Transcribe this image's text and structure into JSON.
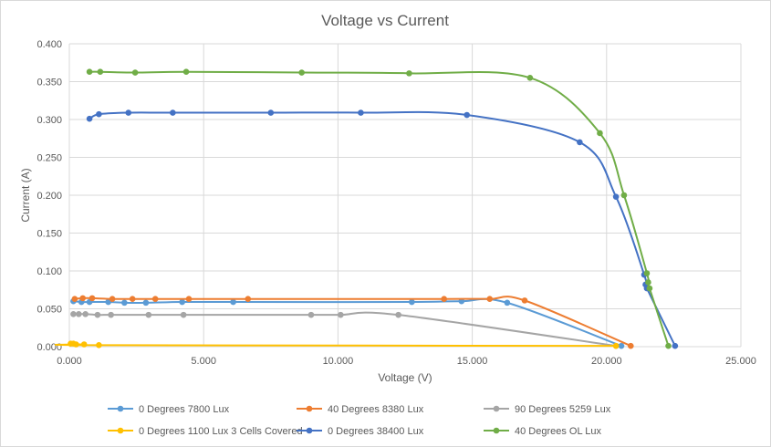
{
  "chart_data": {
    "type": "scatter",
    "title": "Voltage vs Current",
    "xlabel": "Voltage (V)",
    "ylabel": "Current (A)",
    "xlim": [
      0,
      25
    ],
    "ylim": [
      0,
      0.4
    ],
    "x_ticks": [
      "0.000",
      "5.000",
      "10.000",
      "15.000",
      "20.000",
      "25.000"
    ],
    "y_ticks": [
      "0.000",
      "0.050",
      "0.100",
      "0.150",
      "0.200",
      "0.250",
      "0.300",
      "0.350",
      "0.400"
    ],
    "grid": true,
    "legend_position": "bottom",
    "series": [
      {
        "name": "0 Degrees 7800 Lux",
        "color": "#5b9bd5",
        "points": [
          [
            0.15,
            0.06
          ],
          [
            0.45,
            0.059
          ],
          [
            0.75,
            0.059
          ],
          [
            1.45,
            0.059
          ],
          [
            2.05,
            0.058
          ],
          [
            2.85,
            0.058
          ],
          [
            4.2,
            0.059
          ],
          [
            6.1,
            0.059
          ],
          [
            12.75,
            0.059
          ],
          [
            14.6,
            0.06
          ],
          [
            16.3,
            0.058
          ],
          [
            20.55,
            0.001
          ]
        ]
      },
      {
        "name": "40 Degrees 8380 Lux",
        "color": "#ed7d31",
        "points": [
          [
            0.2,
            0.063
          ],
          [
            0.5,
            0.064
          ],
          [
            0.85,
            0.064
          ],
          [
            1.6,
            0.063
          ],
          [
            2.35,
            0.063
          ],
          [
            3.2,
            0.063
          ],
          [
            4.45,
            0.063
          ],
          [
            6.65,
            0.063
          ],
          [
            13.95,
            0.063
          ],
          [
            15.65,
            0.063
          ],
          [
            16.95,
            0.061
          ],
          [
            20.9,
            0.001
          ]
        ]
      },
      {
        "name": "90 Degrees 5259 Lux",
        "color": "#a5a5a5",
        "points": [
          [
            0.15,
            0.043
          ],
          [
            0.35,
            0.043
          ],
          [
            0.6,
            0.043
          ],
          [
            1.05,
            0.042
          ],
          [
            1.55,
            0.042
          ],
          [
            2.95,
            0.042
          ],
          [
            4.25,
            0.042
          ],
          [
            9.0,
            0.042
          ],
          [
            10.1,
            0.042
          ],
          [
            12.25,
            0.042
          ],
          [
            20.35,
            0.001
          ]
        ]
      },
      {
        "name": "0 Degrees 1100 Lux 3 Cells Covered",
        "color": "#ffc000",
        "points": [
          [
            0.05,
            0.004
          ],
          [
            0.15,
            0.004
          ],
          [
            0.25,
            0.003
          ],
          [
            0.55,
            0.003
          ],
          [
            1.1,
            0.002
          ],
          [
            20.35,
            0.001
          ]
        ]
      },
      {
        "name": "0 Degrees 38400 Lux",
        "color": "#4472c4",
        "points": [
          [
            0.75,
            0.301
          ],
          [
            1.1,
            0.307
          ],
          [
            2.2,
            0.309
          ],
          [
            3.85,
            0.309
          ],
          [
            7.5,
            0.309
          ],
          [
            10.85,
            0.309
          ],
          [
            14.8,
            0.306
          ],
          [
            19.0,
            0.27
          ],
          [
            20.35,
            0.198
          ],
          [
            21.4,
            0.095
          ],
          [
            21.45,
            0.082
          ],
          [
            21.5,
            0.077
          ],
          [
            22.55,
            0.001
          ]
        ]
      },
      {
        "name": "40 Degrees OL Lux",
        "color": "#70ad47",
        "points": [
          [
            0.75,
            0.363
          ],
          [
            1.15,
            0.363
          ],
          [
            2.45,
            0.362
          ],
          [
            4.35,
            0.363
          ],
          [
            8.65,
            0.362
          ],
          [
            12.65,
            0.361
          ],
          [
            17.15,
            0.355
          ],
          [
            19.75,
            0.282
          ],
          [
            20.65,
            0.2
          ],
          [
            21.5,
            0.097
          ],
          [
            21.55,
            0.085
          ],
          [
            21.6,
            0.077
          ],
          [
            22.3,
            0.001
          ]
        ]
      }
    ]
  }
}
